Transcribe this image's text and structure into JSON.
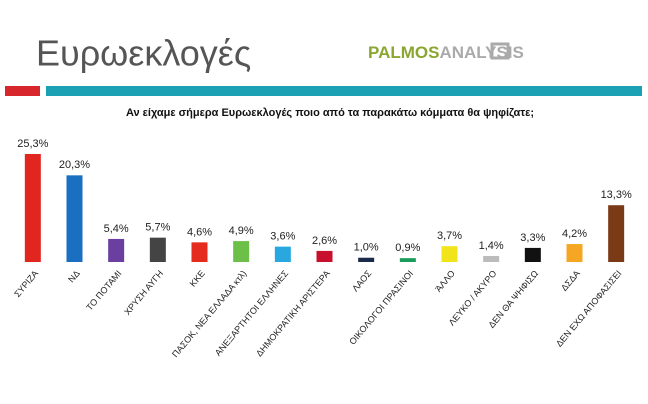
{
  "header": {
    "title": "Ευρωεκλογές",
    "logo_bold": "PALMOS",
    "logo_light": "ANALYSIS"
  },
  "chart_data": {
    "type": "bar",
    "title": "Αν είχαμε σήμερα Ευρωεκλογές ποιο από τα παρακάτω κόμματα θα ψηφίζατε;",
    "categories": [
      "ΣΥΡΙΖΑ",
      "ΝΔ",
      "ΤΟ ΠΟΤΑΜΙ",
      "ΧΡΥΣΗ ΑΥΓΗ",
      "ΚΚΕ",
      "ΠΑΣΟΚ, ΝΕΑ ΕΛΛΑΔΑ κτλ)",
      "ΑΝΕΞΑΡΤΗΤΟΙ ΕΛΛΗΝΕΣ",
      "ΔΗΜΟΚΡΑΤΙΚΗ ΑΡΙΣΤΕΡΑ",
      "ΛΑΟΣ",
      "ΟΙΚΟΛΟΓΟΙ ΠΡΑΣΙΝΟΙ",
      "ΆΛΛΟ",
      "ΛΕΥΚΟ / ΑΚΥΡΟ",
      "ΔΕΝ ΘΑ ΨΗΦΙΣΩ",
      "ΔΣΔΑ",
      "ΔΕΝ ΕΧΩ ΑΠΟΦΑΣΙΣΕΙ"
    ],
    "values": [
      25.3,
      20.3,
      5.4,
      5.7,
      4.6,
      4.9,
      3.6,
      2.6,
      1.0,
      0.9,
      3.7,
      1.4,
      3.3,
      4.2,
      13.3
    ],
    "value_labels": [
      "25,3%",
      "20,3%",
      "5,4%",
      "5,7%",
      "4,6%",
      "4,9%",
      "3,6%",
      "2,6%",
      "1,0%",
      "0,9%",
      "3,7%",
      "1,4%",
      "3,3%",
      "4,2%",
      "13,3%"
    ],
    "colors": [
      "#e0261f",
      "#1a6fc0",
      "#6a3fa0",
      "#444444",
      "#e52a1e",
      "#6cc04a",
      "#29a7df",
      "#c8102e",
      "#1c2a4a",
      "#1a9b5a",
      "#f2e41a",
      "#bbbbbb",
      "#111111",
      "#f5a623",
      "#7b3a16"
    ],
    "ylim": [
      0,
      26
    ]
  }
}
